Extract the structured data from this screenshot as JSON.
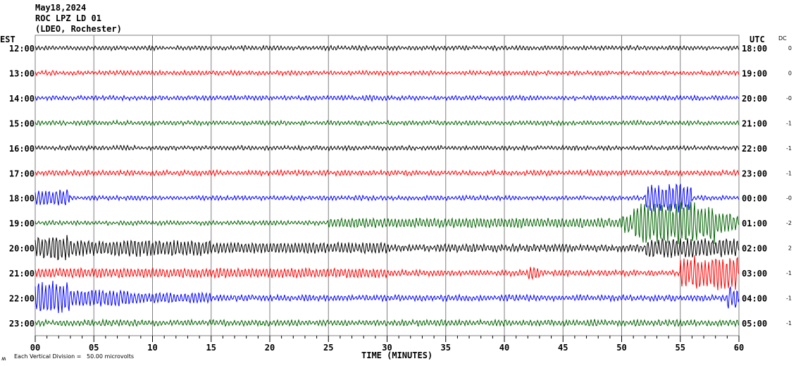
{
  "header": {
    "date": "May18,2024",
    "station": "ROC LPZ LD 01",
    "network": "(LDEO, Rochester)"
  },
  "chart_data": {
    "type": "line",
    "title": "May18,2024 ROC LPZ LD 01 (LDEO, Rochester)",
    "xlabel": "TIME (MINUTES)",
    "left_axis_label": "EST",
    "right_axis_label": "UTC",
    "dc_label": "DC",
    "xlim": [
      0,
      60
    ],
    "x_ticks": [
      "00",
      "05",
      "10",
      "15",
      "20",
      "25",
      "30",
      "35",
      "40",
      "45",
      "50",
      "55",
      "60"
    ],
    "scale_note": "Each Vertical Division =   50.00 microvolts",
    "corner_mark": "ʍ",
    "rows": [
      {
        "est": "12:00",
        "utc": "18:00",
        "dc": "0",
        "color": "#000000",
        "base": 0.15,
        "events": []
      },
      {
        "est": "13:00",
        "utc": "19:00",
        "dc": "0",
        "color": "#ff0000",
        "base": 0.15,
        "events": []
      },
      {
        "est": "14:00",
        "utc": "20:00",
        "dc": "-0",
        "color": "#0000ff",
        "base": 0.15,
        "events": [
          [
            28,
            29,
            0.3
          ]
        ]
      },
      {
        "est": "15:00",
        "utc": "21:00",
        "dc": "-1",
        "color": "#006400",
        "base": 0.15,
        "events": []
      },
      {
        "est": "16:00",
        "utc": "22:00",
        "dc": "-1",
        "color": "#000000",
        "base": 0.15,
        "events": []
      },
      {
        "est": "17:00",
        "utc": "23:00",
        "dc": "-1",
        "color": "#ff0000",
        "base": 0.18,
        "events": []
      },
      {
        "est": "18:00",
        "utc": "00:00",
        "dc": "-0",
        "color": "#0000ff",
        "base": 0.15,
        "events": [
          [
            0,
            3,
            0.8
          ],
          [
            52,
            56,
            1.3
          ]
        ]
      },
      {
        "est": "19:00",
        "utc": "01:00",
        "dc": "-2",
        "color": "#006400",
        "base": 0.15,
        "events": [
          [
            25,
            50,
            0.45
          ],
          [
            50,
            51,
            0.9
          ],
          [
            51,
            58,
            2.0
          ],
          [
            58,
            60,
            0.9
          ]
        ]
      },
      {
        "est": "20:00",
        "utc": "02:00",
        "dc": "2",
        "color": "#000000",
        "base": 0.25,
        "events": [
          [
            0,
            3,
            1.2
          ],
          [
            3,
            15,
            0.8
          ],
          [
            15,
            30,
            0.5
          ],
          [
            52,
            60,
            0.9
          ]
        ]
      },
      {
        "est": "21:00",
        "utc": "03:00",
        "dc": "-1",
        "color": "#ff0000",
        "base": 0.2,
        "events": [
          [
            0,
            30,
            0.45
          ],
          [
            42,
            43,
            0.6
          ],
          [
            55,
            60,
            1.6
          ]
        ]
      },
      {
        "est": "22:00",
        "utc": "04:00",
        "dc": "-1",
        "color": "#0000ff",
        "base": 0.2,
        "events": [
          [
            0,
            3,
            1.6
          ],
          [
            3,
            8,
            0.8
          ],
          [
            8,
            15,
            0.5
          ],
          [
            59,
            60,
            1.0
          ]
        ]
      },
      {
        "est": "23:00",
        "utc": "05:00",
        "dc": "-1",
        "color": "#006400",
        "base": 0.2,
        "events": [
          [
            47,
            48,
            0.35
          ],
          [
            51,
            52,
            0.3
          ]
        ]
      }
    ]
  }
}
